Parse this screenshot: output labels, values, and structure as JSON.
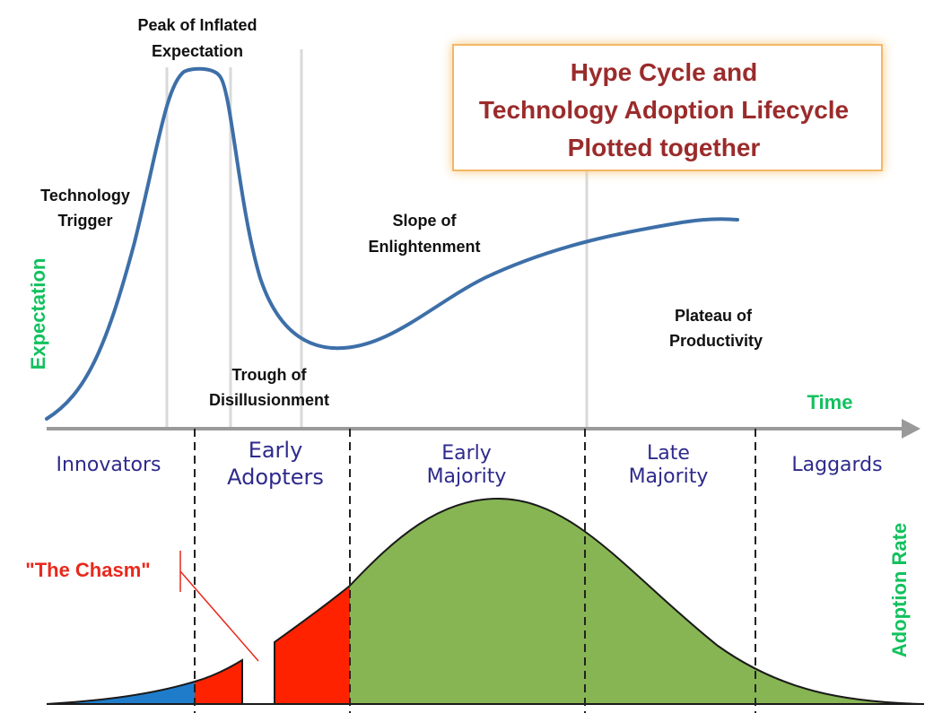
{
  "title": {
    "line1": "Hype Cycle and",
    "line2": "Technology Adoption Lifecycle",
    "line3": "Plotted together"
  },
  "hype_phases": {
    "trigger_line1": "Technology",
    "trigger_line2": "Trigger",
    "peak_line1": "Peak of Inflated",
    "peak_line2": "Expectation",
    "trough_line1": "Trough of",
    "trough_line2": "Disillusionment",
    "slope_line1": "Slope of",
    "slope_line2": "Enlightenment",
    "plateau_line1": "Plateau of",
    "plateau_line2": "Productivity"
  },
  "axes": {
    "y_label": "Expectation",
    "x_label": "Time",
    "adoption_label": "Adoption Rate"
  },
  "segments": {
    "innovators": "Innovators",
    "early_adopters_line1": "Early",
    "early_adopters_line2": "Adopters",
    "early_majority_line1": "Early",
    "early_majority_line2": "Majority",
    "late_majority_line1": "Late",
    "late_majority_line2": "Majority",
    "laggards": "Laggards"
  },
  "chasm_label": "\"The Chasm\"",
  "colors": {
    "hype_curve": "#3d6fa8",
    "innovators_fill": "#1f7ccb",
    "early_adopters_fill": "#ff2200",
    "majority_fill": "#87b553",
    "title_text": "#9b2b2b",
    "axis_label": "#12c15e",
    "segment_text": "#2e2a8c",
    "chasm_text": "#e8291c",
    "time_axis": "#9a9a9a"
  }
}
